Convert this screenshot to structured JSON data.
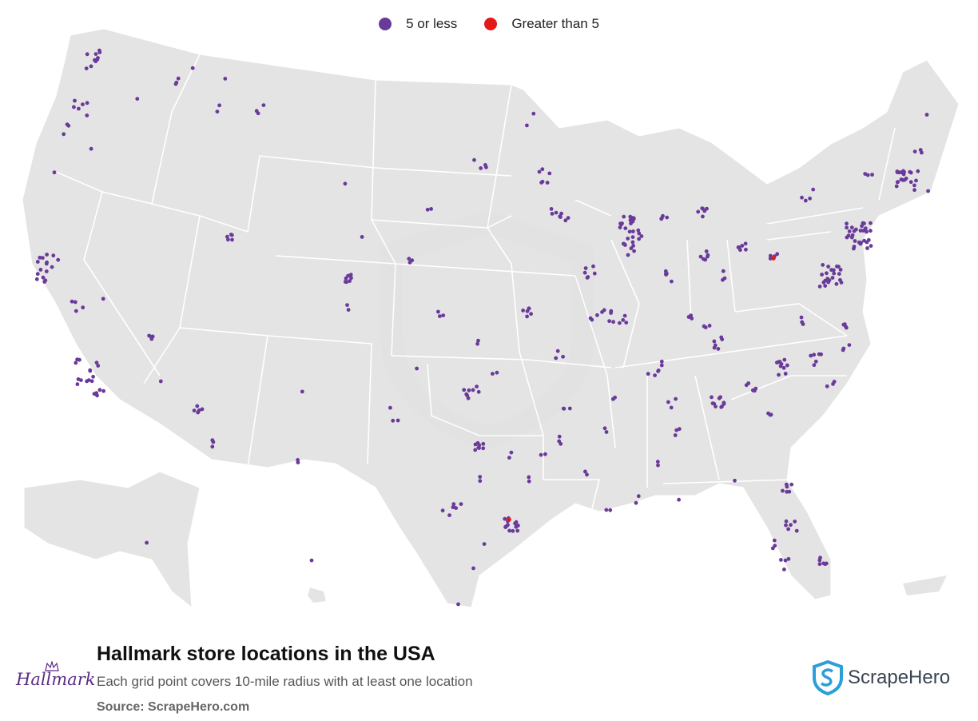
{
  "legend": {
    "small_label": "5 or less",
    "large_label": "Greater than 5",
    "small_color": "#6a3a9a",
    "large_color": "#e41a1a"
  },
  "footer": {
    "title": "Hallmark store locations in the USA",
    "subtitle": "Each grid point covers 10-mile radius with at least one location",
    "source": "Source: ScrapeHero.com"
  },
  "brand": {
    "hallmark_logo": "Hallmark",
    "scrapehero_logo": "ScrapeHero"
  },
  "colors": {
    "land": "#e4e4e4",
    "state_border": "#ffffff",
    "watermark": "#6a8fb8"
  },
  "icons": {
    "hallmark": "hallmark-crown-logo",
    "scrapehero": "shield-s-logo"
  }
}
